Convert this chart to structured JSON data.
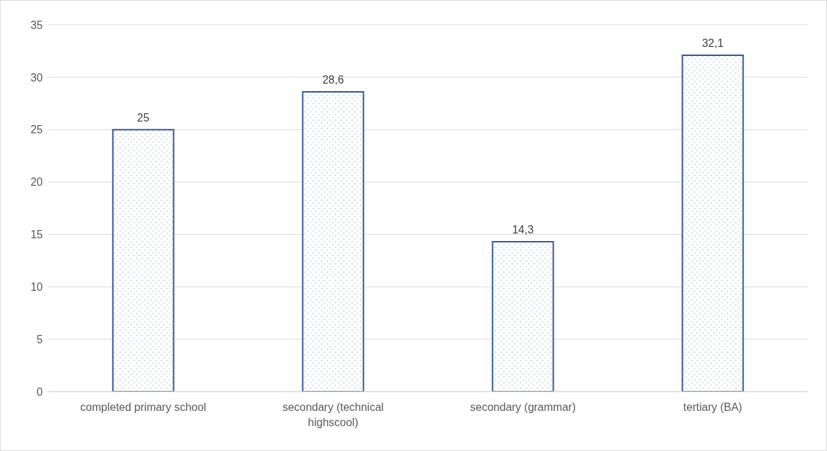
{
  "chart_data": {
    "type": "bar",
    "categories": [
      "completed primary school",
      "secondary (technical highscool)",
      "secondary (grammar)",
      "tertiary (BA)"
    ],
    "values": [
      25,
      28.6,
      14.3,
      32.1
    ],
    "value_labels": [
      "25",
      "28,6",
      "14,3",
      "32,1"
    ],
    "color": "#2f5597",
    "ylim": [
      0,
      35
    ],
    "yticks": [
      0,
      5,
      10,
      15,
      20,
      25,
      30,
      35
    ],
    "grid": "y"
  }
}
